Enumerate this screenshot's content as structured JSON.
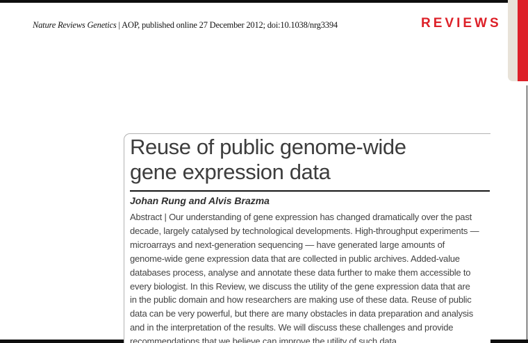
{
  "header": {
    "journal_name": "Nature Reviews Genetics",
    "citation_info": " | AOP, published online 27 December 2012; doi:10.1038/nrg3394",
    "section_label": "REVIEWS"
  },
  "article": {
    "title_lines": [
      "Reuse of public genome-wide",
      "gene expression data"
    ],
    "authors": "Johan Rung and Alvis Brazma",
    "abstract_lines": [
      "Abstract | Our understanding of gene expression has changed dramatically over the past",
      "decade, largely catalysed by technological developments. High-throughput experiments —",
      "microarrays and next-generation sequencing — have generated large amounts of",
      "genome-wide gene expression data that are collected in public archives. Added-value",
      "databases process, analyse and annotate these data further to make them accessible to",
      "every biologist. In this Review, we discuss the utility of the gene expression data that are",
      "in the public domain and how researchers are making use of these data. Reuse of public",
      "data can be very powerful, but there are many obstacles in data preparation and analysis",
      "and in the interpretation of the results. We will discuss these challenges and provide",
      "recommendations that we believe can improve the utility of such data."
    ]
  },
  "colors": {
    "accent_red": "#dd2028",
    "tab_beige": "#e8e3d9",
    "page_rule_black": "#0e0e0e",
    "box_border_gray": "#b2b2b2",
    "title_text": "#3d3d3d",
    "body_text": "#434343"
  }
}
